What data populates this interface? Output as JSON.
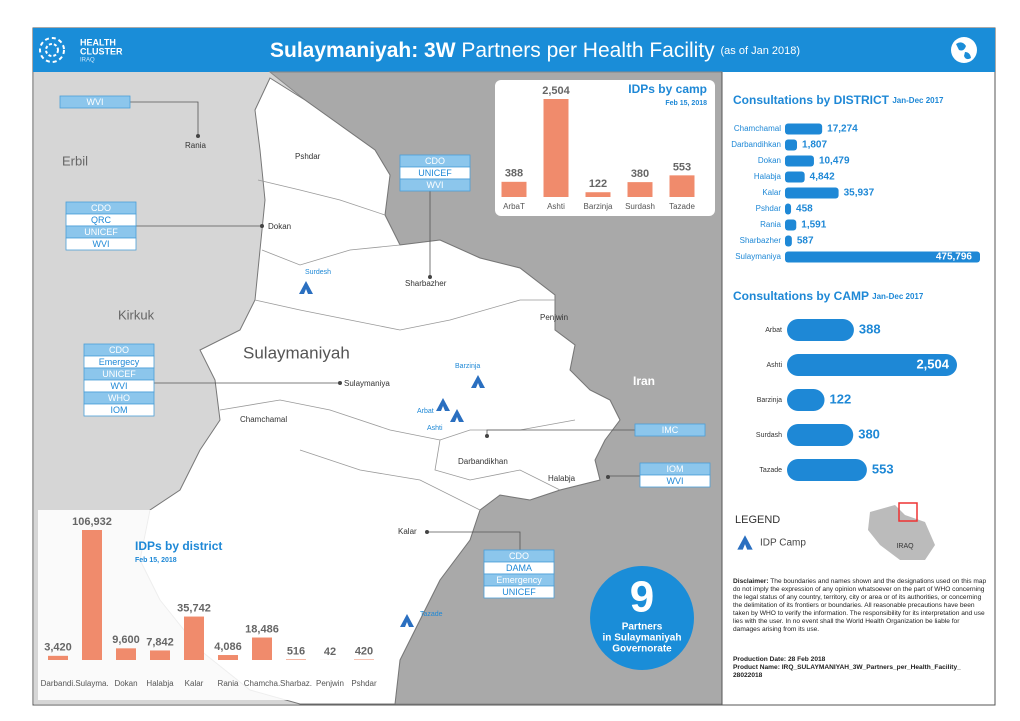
{
  "header": {
    "logo": [
      "HEALTH",
      "CLUSTER",
      "IRAQ"
    ],
    "title_bold": "Sulaymaniyah: 3W",
    "title_rest": "Partners per Health Facility",
    "title_note": "(as of Jan 2018)"
  },
  "map": {
    "regions": [
      "Erbil",
      "Kirkuk",
      "Iran",
      "Sulaymaniyah"
    ],
    "places": [
      "Rania",
      "Pshdar",
      "Dokan",
      "Sharbazher",
      "Penjwin",
      "Sulaymaniya",
      "Chamchamal",
      "Darbandikhan",
      "Halabja",
      "Kalar"
    ],
    "camps": [
      "Surdesh",
      "Barzinja",
      "Arbat",
      "Ashti",
      "Tazade"
    ],
    "partner_boxes": [
      [
        "WVI"
      ],
      [
        "CDO",
        "UNICEF",
        "WVI"
      ],
      [
        "CDO",
        "QRC",
        "UNICEF",
        "WVI"
      ],
      [
        "CDO",
        "Emergecy",
        "UNICEF",
        "WVI",
        "WHO",
        "IOM"
      ],
      [
        "IMC"
      ],
      [
        "IOM",
        "WVI"
      ],
      [
        "CDO",
        "DAMA",
        "Emergency",
        "UNICEF"
      ]
    ]
  },
  "chart_data": [
    {
      "type": "bar",
      "orientation": "vertical",
      "scale": "linear",
      "title": "IDPs by camp",
      "subtitle": "Feb 15, 2018",
      "categories": [
        "ArbaT",
        "Ashti",
        "Barzinja",
        "Surdash",
        "Tazade"
      ],
      "values": [
        388,
        2504,
        122,
        380,
        553
      ],
      "value_labels": [
        "388",
        "2,504",
        "122",
        "380",
        "553"
      ],
      "color": "#f08b6c"
    },
    {
      "type": "bar",
      "orientation": "horizontal",
      "scale": "sqrt",
      "title": "Consultations by DISTRICT",
      "subtitle": "Jan-Dec 2017",
      "categories": [
        "Chamchamal",
        "Darbandihkan",
        "Dokan",
        "Halabja",
        "Kalar",
        "Pshdar",
        "Rania",
        "Sharbazher",
        "Sulaymaniya"
      ],
      "values": [
        17274,
        1807,
        10479,
        4842,
        35937,
        458,
        1591,
        587,
        475796
      ],
      "value_labels": [
        "17,274",
        "1,807",
        "10,479",
        "4,842",
        "35,937",
        "458",
        "1,591",
        "587",
        "475,796"
      ],
      "color": "#1e88d6"
    },
    {
      "type": "bar",
      "orientation": "horizontal",
      "scale": "sqrt",
      "title": "Consultations by CAMP",
      "subtitle": "Jan-Dec 2017",
      "categories": [
        "Arbat",
        "Ashti",
        "Barzinja",
        "Surdash",
        "Tazade"
      ],
      "values": [
        388,
        2504,
        122,
        380,
        553
      ],
      "value_labels": [
        "388",
        "2,504",
        "122",
        "380",
        "553"
      ],
      "color": "#1e88d6"
    },
    {
      "type": "bar",
      "orientation": "vertical",
      "scale": "linear",
      "title": "IDPs by district",
      "subtitle": "Feb 15, 2018",
      "categories": [
        "Darbandi.",
        "Sulayma.",
        "Dokan",
        "Halabja",
        "Kalar",
        "Rania",
        "Chamcha.",
        "Sharbaz.",
        "Penjwin",
        "Pshdar"
      ],
      "values": [
        3420,
        106932,
        9600,
        7842,
        35742,
        4086,
        18486,
        516,
        42,
        420
      ],
      "value_labels": [
        "3,420",
        "106,932",
        "9,600",
        "7,842",
        "35,742",
        "4,086",
        "18,486",
        "516",
        "42",
        "420"
      ],
      "color": "#f08b6c"
    }
  ],
  "legend": {
    "title": "LEGEND",
    "items": [
      "IDP Camp"
    ],
    "inset_label": "IRAQ"
  },
  "partners": {
    "count": 9,
    "lines": [
      "Partners",
      "in Sulaymaniyah",
      "Governorate"
    ]
  },
  "disclaimer": {
    "label": "Disclaimer:",
    "text": "The boundaries and names shown and the designations used on this map do not imply the expression of any opinion whatsoever on the part of WHO concerning the legal status of any country, territory, city or area or of its authorities, or concerning the delimitation of its frontiers or boundaries. All reasonable precautions have been taken by WHO to verify the information. The responsibility for its interpretation and use lies with the user. In no event shall the World Health Organization be liable for damages arising from its use."
  },
  "production": {
    "date": "Production Date: 28 Feb 2018",
    "product": "Product Name: IRQ_SULAYMANIYAH_3W_Partners_per_Health_Facility_28022018"
  }
}
